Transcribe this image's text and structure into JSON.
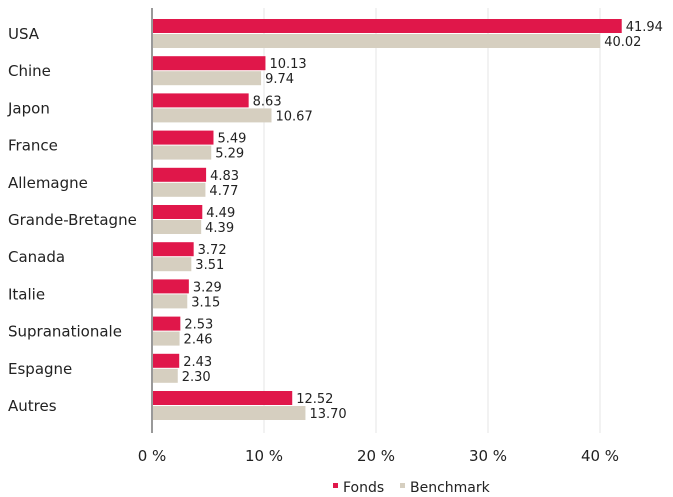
{
  "chart_data": {
    "type": "bar",
    "orientation": "horizontal",
    "categories": [
      "USA",
      "Chine",
      "Japon",
      "France",
      "Allemagne",
      "Grande-Bretagne",
      "Canada",
      "Italie",
      "Supranationale",
      "Espagne",
      "Autres"
    ],
    "series": [
      {
        "name": "Fonds",
        "color": "#E0174A",
        "values": [
          41.94,
          10.13,
          8.63,
          5.49,
          4.83,
          4.49,
          3.72,
          3.29,
          2.53,
          2.43,
          12.52
        ],
        "value_labels": [
          "41.94",
          "10.13",
          "8.63",
          "5.49",
          "4.83",
          "4.49",
          "3.72",
          "3.29",
          "2.53",
          "2.43",
          "12.52"
        ]
      },
      {
        "name": "Benchmark",
        "color": "#D6CFC0",
        "values": [
          40.02,
          9.74,
          10.67,
          5.29,
          4.77,
          4.39,
          3.51,
          3.15,
          2.46,
          2.3,
          13.7
        ],
        "value_labels": [
          "40.02",
          "9.74",
          "10.67",
          "5.29",
          "4.77",
          "4.39",
          "3.51",
          "3.15",
          "2.46",
          "2.30",
          "13.70"
        ]
      }
    ],
    "xlim": [
      0,
      45
    ],
    "xticks": [
      0,
      10,
      20,
      30,
      40
    ],
    "xtick_labels": [
      "0 %",
      "10 %",
      "20 %",
      "30 %",
      "40 %"
    ],
    "grid": "vertical",
    "legend_position": "bottom-right"
  }
}
